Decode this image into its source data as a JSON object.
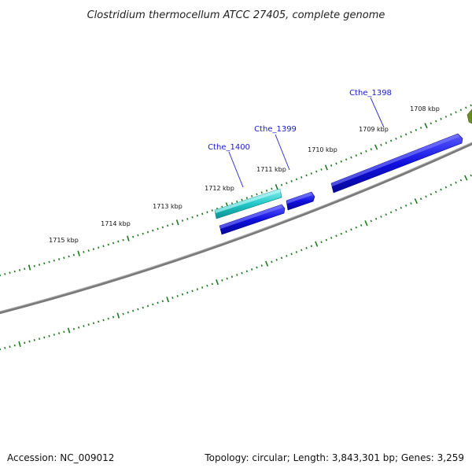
{
  "title": "Clostridium thermocellum ATCC 27405, complete genome",
  "footer": {
    "accession": "Accession: NC_009012",
    "summary": "Topology: circular; Length: 3,843,301 bp; Genes: 3,259"
  },
  "colors": {
    "backbone": "#7a7a7a",
    "ticks": "#1f7a1f",
    "gene_blue": "#1010e0",
    "gene_cyan": "#22c8c8",
    "gene_olive": "#6b8e23",
    "gene_label": "#1a1acc"
  },
  "scale_labels": [
    "1715 kbp",
    "1714 kbp",
    "1713 kbp",
    "1712 kbp",
    "1711 kbp",
    "1710 kbp",
    "1709 kbp",
    "1708 kbp"
  ],
  "genes": [
    {
      "id": "cthe-1400",
      "label": "Cthe_1400",
      "color": "cyan",
      "strand": "forward"
    },
    {
      "id": "cthe-1399",
      "label": "Cthe_1399",
      "color": "blue",
      "strand": "forward"
    },
    {
      "id": "cthe-1398",
      "label": "Cthe_1398",
      "color": "blue",
      "strand": "forward"
    }
  ]
}
